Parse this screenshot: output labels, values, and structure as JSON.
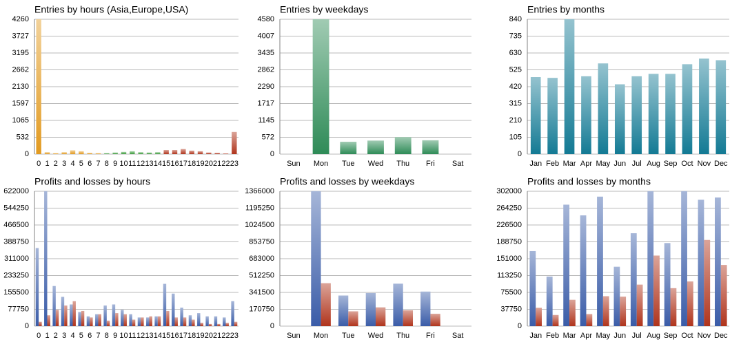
{
  "chart_data": [
    {
      "type": "bar",
      "title": "Entries by hours (Asia,Europe,USA)",
      "categories": [
        "0",
        "1",
        "2",
        "3",
        "4",
        "5",
        "6",
        "7",
        "8",
        "9",
        "10",
        "11",
        "12",
        "13",
        "14",
        "15",
        "16",
        "17",
        "18",
        "19",
        "20",
        "21",
        "22",
        "23"
      ],
      "values": [
        4260,
        60,
        30,
        60,
        120,
        90,
        40,
        30,
        30,
        50,
        70,
        90,
        60,
        50,
        60,
        130,
        130,
        160,
        110,
        90,
        50,
        40,
        20,
        700
      ],
      "colors": [
        "#e29a20",
        "#e29a20",
        "#e29a20",
        "#e29a20",
        "#e29a20",
        "#e29a20",
        "#e29a20",
        "#e29a20",
        "#3a9a3a",
        "#3a9a3a",
        "#3a9a3a",
        "#3a9a3a",
        "#3a9a3a",
        "#3a9a3a",
        "#3a9a3a",
        "#b0341c",
        "#b0341c",
        "#b0341c",
        "#b0341c",
        "#b0341c",
        "#b0341c",
        "#b0341c",
        "#b0341c",
        "#b0341c"
      ],
      "ylim": [
        0,
        4260
      ],
      "yticks": [
        0,
        532,
        1065,
        1597,
        2130,
        2662,
        3195,
        3727,
        4260
      ],
      "grid": true
    },
    {
      "type": "bar",
      "title": "Entries by weekdays",
      "categories": [
        "Sun",
        "Mon",
        "Tue",
        "Wed",
        "Thu",
        "Fri",
        "Sat"
      ],
      "values": [
        0,
        4580,
        420,
        460,
        580,
        470,
        0
      ],
      "color": "#2e8b57",
      "ylim": [
        0,
        4580
      ],
      "yticks": [
        0,
        572,
        1145,
        1717,
        2290,
        2862,
        3435,
        4007,
        4580
      ],
      "grid": true
    },
    {
      "type": "bar",
      "title": "Entries by months",
      "categories": [
        "Jan",
        "Feb",
        "Mar",
        "Apr",
        "May",
        "Jun",
        "Jul",
        "Aug",
        "Sep",
        "Oct",
        "Nov",
        "Dec"
      ],
      "values": [
        480,
        475,
        840,
        485,
        565,
        435,
        485,
        500,
        500,
        560,
        595,
        585
      ],
      "color": "#137a94",
      "ylim": [
        0,
        840
      ],
      "yticks": [
        0,
        105,
        210,
        315,
        420,
        525,
        630,
        735,
        840
      ],
      "grid": true
    },
    {
      "type": "bar",
      "title": "Profits and losses by hours",
      "categories": [
        "0",
        "1",
        "2",
        "3",
        "4",
        "5",
        "6",
        "7",
        "8",
        "9",
        "10",
        "11",
        "12",
        "13",
        "14",
        "15",
        "16",
        "17",
        "18",
        "19",
        "20",
        "21",
        "22",
        "23"
      ],
      "series": [
        {
          "color": "#3a5ca8",
          "values": [
            360000,
            622000,
            185000,
            135000,
            100000,
            65000,
            45000,
            55000,
            95000,
            100000,
            75000,
            55000,
            40000,
            40000,
            45000,
            195000,
            150000,
            85000,
            50000,
            60000,
            45000,
            45000,
            40000,
            115000
          ]
        },
        {
          "color": "#b0341c",
          "values": [
            20000,
            50000,
            75000,
            95000,
            115000,
            70000,
            40000,
            55000,
            25000,
            60000,
            55000,
            30000,
            40000,
            45000,
            45000,
            70000,
            40000,
            40000,
            30000,
            15000,
            10000,
            10000,
            15000,
            20000
          ]
        }
      ],
      "ylim": [
        0,
        622000
      ],
      "yticks": [
        0,
        77750,
        155500,
        233250,
        311000,
        388750,
        466500,
        544250,
        622000
      ],
      "grid": true
    },
    {
      "type": "bar",
      "title": "Profits and losses by weekdays",
      "categories": [
        "Sun",
        "Mon",
        "Tue",
        "Wed",
        "Thu",
        "Fri",
        "Sat"
      ],
      "series": [
        {
          "color": "#3a5ca8",
          "values": [
            0,
            1366000,
            310000,
            335000,
            430000,
            350000,
            0
          ]
        },
        {
          "color": "#b0341c",
          "values": [
            0,
            435000,
            150000,
            190000,
            160000,
            125000,
            0
          ]
        }
      ],
      "ylim": [
        0,
        1366000
      ],
      "yticks": [
        0,
        170750,
        341500,
        512250,
        683000,
        853750,
        1024500,
        1195250,
        1366000
      ],
      "grid": true
    },
    {
      "type": "bar",
      "title": "Profits and losses by months",
      "categories": [
        "Jan",
        "Feb",
        "Mar",
        "Apr",
        "May",
        "Jun",
        "Jul",
        "Aug",
        "Sep",
        "Oct",
        "Nov",
        "Dec"
      ],
      "series": [
        {
          "color": "#3a5ca8",
          "values": [
            168000,
            111000,
            272000,
            248000,
            290000,
            133000,
            208000,
            302000,
            186000,
            302000,
            283000,
            288000
          ]
        },
        {
          "color": "#b0341c",
          "values": [
            41000,
            25000,
            59000,
            27000,
            67000,
            66000,
            93000,
            158000,
            85000,
            100000,
            193000,
            137000
          ]
        }
      ],
      "ylim": [
        0,
        302000
      ],
      "yticks": [
        0,
        37750,
        75500,
        113250,
        151000,
        188750,
        226500,
        264250,
        302000
      ],
      "grid": true
    }
  ]
}
